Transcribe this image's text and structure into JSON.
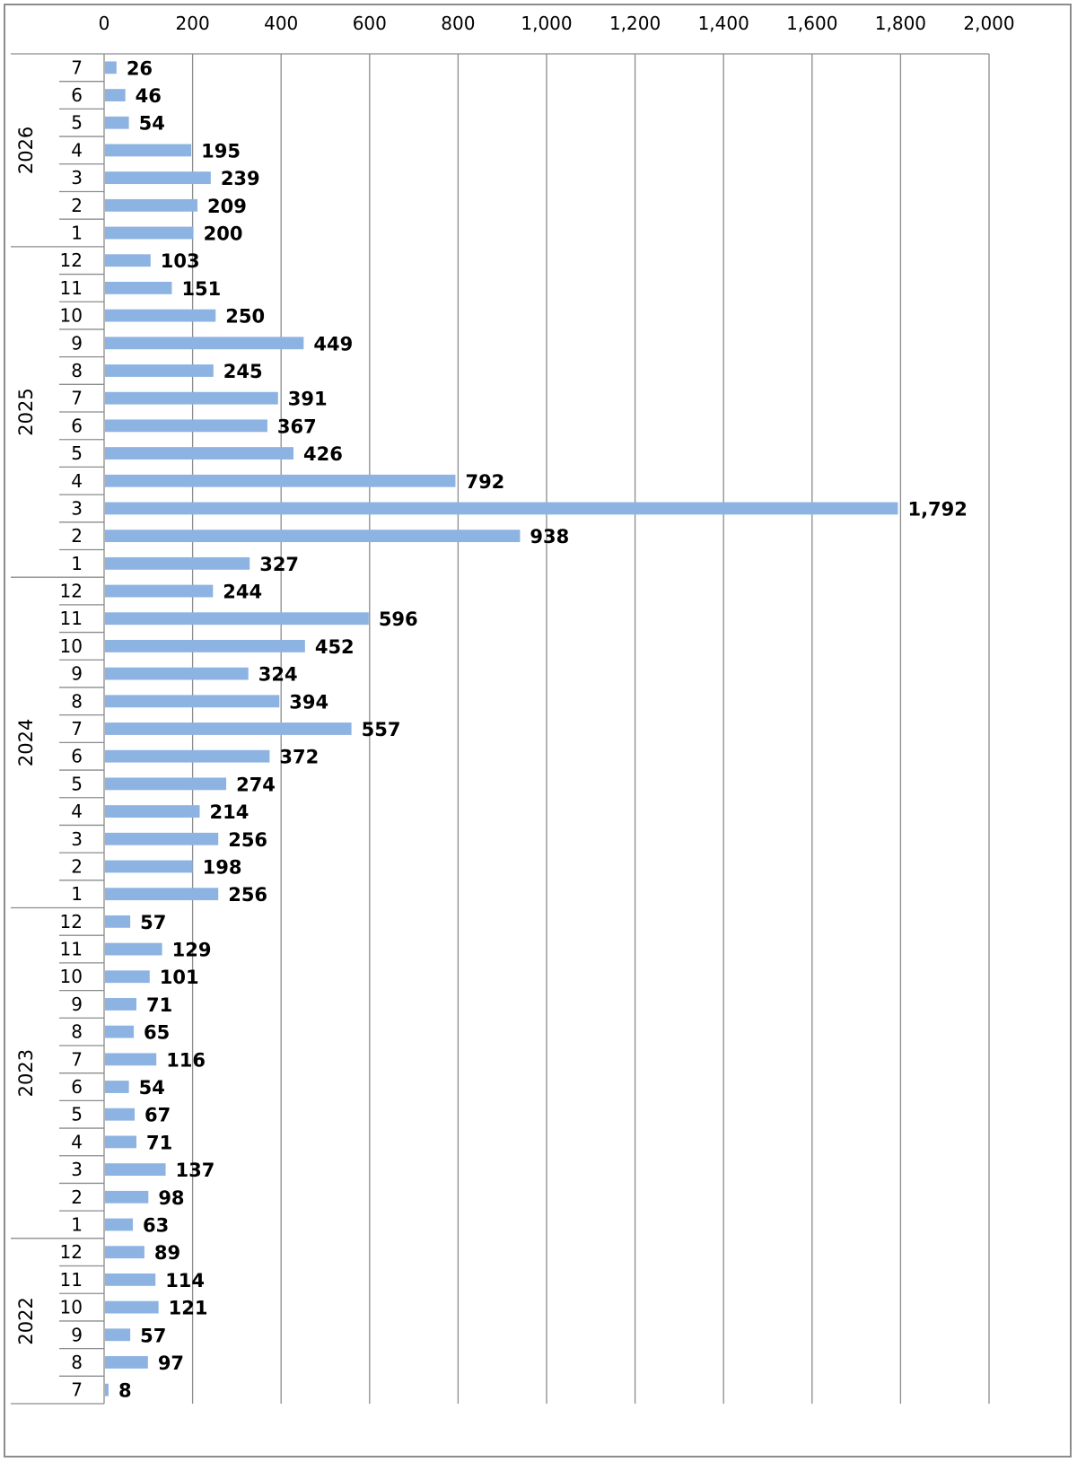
{
  "chart_data": {
    "type": "bar",
    "orientation": "horizontal",
    "title": "",
    "xlabel": "",
    "ylabel": "",
    "xlim": [
      0,
      2000
    ],
    "x_ticks": [
      "0",
      "200",
      "400",
      "600",
      "800",
      "1,000",
      "1,200",
      "1,400",
      "1,600",
      "1,800",
      "2,000"
    ],
    "grid": true,
    "legend": "none",
    "bar_color": "#8DB3E2",
    "groups": [
      {
        "year": "2026",
        "categories": [
          "7",
          "6",
          "5",
          "4",
          "3",
          "2",
          "1"
        ],
        "values": [
          26,
          46,
          54,
          195,
          239,
          209,
          200
        ],
        "labels": [
          "26",
          "46",
          "54",
          "195",
          "239",
          "209",
          "200"
        ]
      },
      {
        "year": "2025",
        "categories": [
          "12",
          "11",
          "10",
          "9",
          "8",
          "7",
          "6",
          "5",
          "4",
          "3",
          "2",
          "1"
        ],
        "values": [
          103,
          151,
          250,
          449,
          245,
          391,
          367,
          426,
          792,
          1792,
          938,
          327
        ],
        "labels": [
          "103",
          "151",
          "250",
          "449",
          "245",
          "391",
          "367",
          "426",
          "792",
          "1,792",
          "938",
          "327"
        ]
      },
      {
        "year": "2024",
        "categories": [
          "12",
          "11",
          "10",
          "9",
          "8",
          "7",
          "6",
          "5",
          "4",
          "3",
          "2",
          "1"
        ],
        "values": [
          244,
          596,
          452,
          324,
          394,
          557,
          372,
          274,
          214,
          256,
          198,
          256
        ],
        "labels": [
          "244",
          "596",
          "452",
          "324",
          "394",
          "557",
          "372",
          "274",
          "214",
          "256",
          "198",
          "256"
        ]
      },
      {
        "year": "2023",
        "categories": [
          "12",
          "11",
          "10",
          "9",
          "8",
          "7",
          "6",
          "5",
          "4",
          "3",
          "2",
          "1"
        ],
        "values": [
          57,
          129,
          101,
          71,
          65,
          116,
          54,
          67,
          71,
          137,
          98,
          63
        ],
        "labels": [
          "57",
          "129",
          "101",
          "71",
          "65",
          "116",
          "54",
          "67",
          "71",
          "137",
          "98",
          "63"
        ]
      },
      {
        "year": "2022",
        "categories": [
          "12",
          "11",
          "10",
          "9",
          "8",
          "7"
        ],
        "values": [
          89,
          114,
          121,
          57,
          97,
          8
        ],
        "labels": [
          "89",
          "114",
          "121",
          "57",
          "97",
          "8"
        ]
      }
    ]
  }
}
